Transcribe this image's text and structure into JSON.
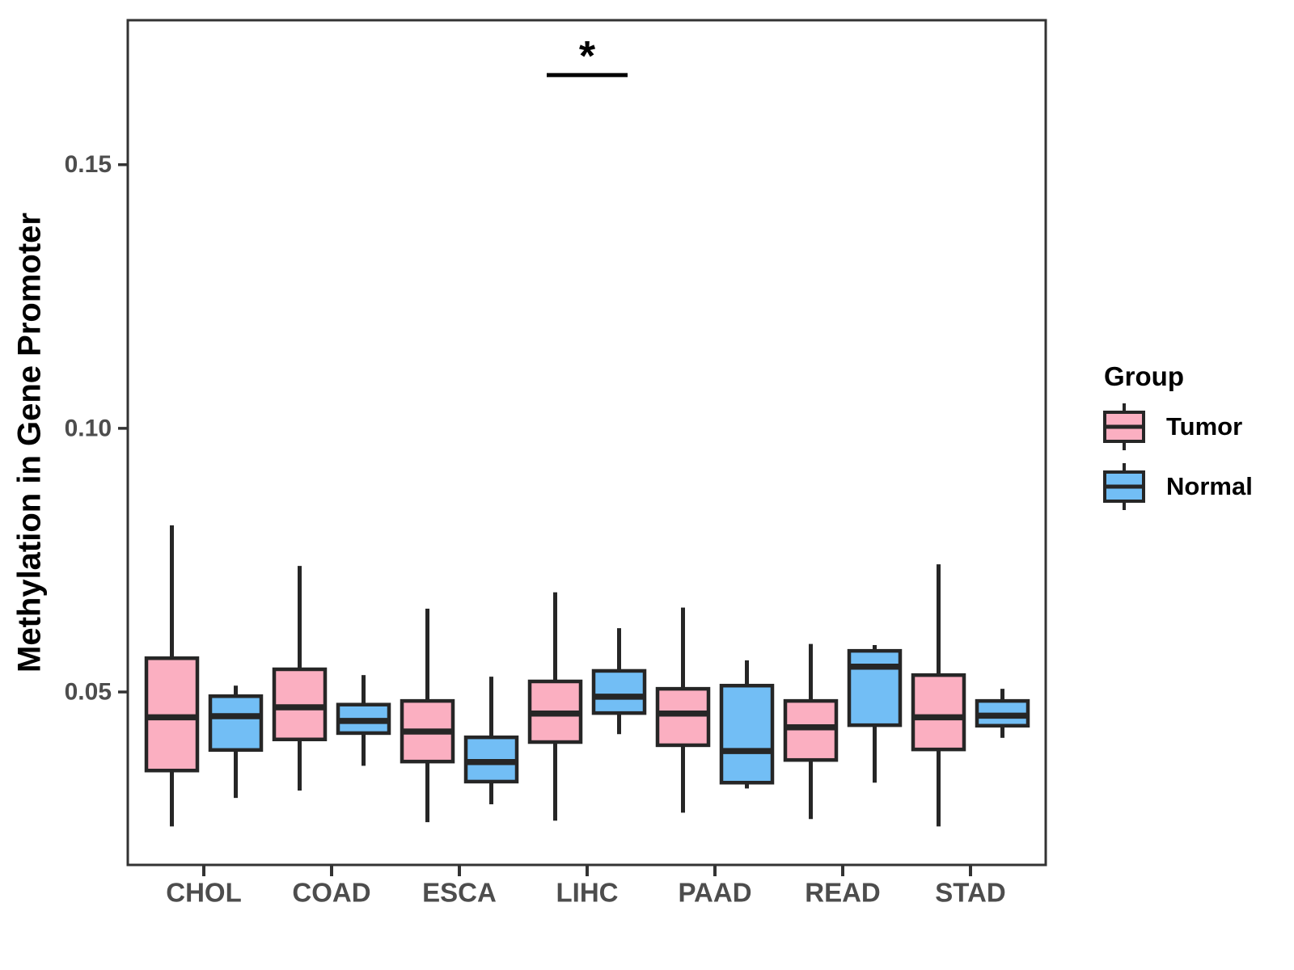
{
  "figure": {
    "background": "#ffffff"
  },
  "colors": {
    "tumor_fill": "#FBAFC1",
    "normal_fill": "#72BEF5",
    "box_stroke": "#262626",
    "axis_stroke": "#333333",
    "tick_label": "#4d4d4d",
    "text": "#000000"
  },
  "chart_data": {
    "type": "boxplot",
    "title": "",
    "xlabel": "",
    "ylabel": "Methylation in Gene Promoter",
    "legend_title": "Group",
    "legend_position": "right",
    "grid": false,
    "ylim": [
      0.0172,
      0.1774
    ],
    "yticks": [
      {
        "value": 0.05,
        "label": "0.05"
      },
      {
        "value": 0.1,
        "label": "0.10"
      },
      {
        "value": 0.15,
        "label": "0.15"
      }
    ],
    "categories": [
      "CHOL",
      "COAD",
      "ESCA",
      "LIHC",
      "PAAD",
      "READ",
      "STAD"
    ],
    "series": [
      {
        "name": "Tumor",
        "color": "#FBAFC1",
        "data": [
          {
            "min": 0.0245,
            "q1": 0.0351,
            "median": 0.0452,
            "q3": 0.0564,
            "max": 0.0816
          },
          {
            "min": 0.0313,
            "q1": 0.041,
            "median": 0.0471,
            "q3": 0.0543,
            "max": 0.0739
          },
          {
            "min": 0.0253,
            "q1": 0.0368,
            "median": 0.0425,
            "q3": 0.0483,
            "max": 0.0658
          },
          {
            "min": 0.0256,
            "q1": 0.0405,
            "median": 0.0459,
            "q3": 0.052,
            "max": 0.0689
          },
          {
            "min": 0.0271,
            "q1": 0.0399,
            "median": 0.0459,
            "q3": 0.0506,
            "max": 0.066
          },
          {
            "min": 0.0259,
            "q1": 0.0371,
            "median": 0.0433,
            "q3": 0.0483,
            "max": 0.0591
          },
          {
            "min": 0.0245,
            "q1": 0.0391,
            "median": 0.0452,
            "q3": 0.0532,
            "max": 0.0742
          }
        ]
      },
      {
        "name": "Normal",
        "color": "#72BEF5",
        "data": [
          {
            "min": 0.0299,
            "q1": 0.039,
            "median": 0.0454,
            "q3": 0.0492,
            "max": 0.0512
          },
          {
            "min": 0.036,
            "q1": 0.0422,
            "median": 0.0445,
            "q3": 0.0476,
            "max": 0.0532
          },
          {
            "min": 0.0287,
            "q1": 0.033,
            "median": 0.0367,
            "q3": 0.0414,
            "max": 0.0529
          },
          {
            "min": 0.042,
            "q1": 0.046,
            "median": 0.0491,
            "q3": 0.054,
            "max": 0.0621
          },
          {
            "min": 0.0317,
            "q1": 0.0328,
            "median": 0.0388,
            "q3": 0.0512,
            "max": 0.056
          },
          {
            "min": 0.0328,
            "q1": 0.0437,
            "median": 0.0548,
            "q3": 0.0578,
            "max": 0.0589
          },
          {
            "min": 0.0413,
            "q1": 0.0436,
            "median": 0.0455,
            "q3": 0.0483,
            "max": 0.0506
          }
        ]
      }
    ],
    "annotation": {
      "category": "LIHC",
      "label": "*",
      "y": 0.167
    }
  }
}
